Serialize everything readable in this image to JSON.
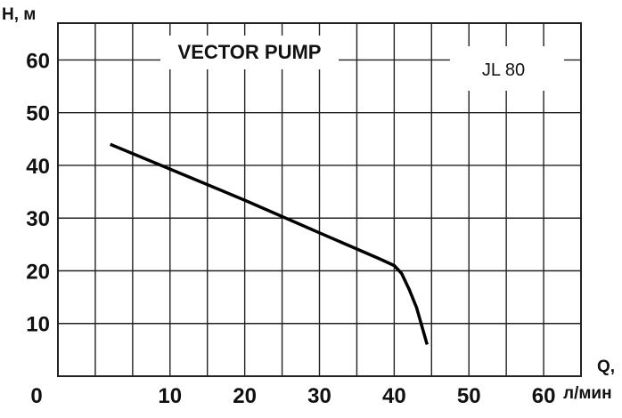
{
  "chart_data": {
    "type": "line",
    "title": "VECTOR PUMP",
    "model_label": "JL 80",
    "ylabel": "H, м",
    "xlabel_line1": "Q,",
    "xlabel_line2": "л/мин",
    "xlim": [
      -5,
      65
    ],
    "ylim": [
      0,
      67
    ],
    "x_ticks": [
      "0",
      "10",
      "20",
      "30",
      "40",
      "50",
      "60"
    ],
    "y_ticks": [
      "10",
      "20",
      "30",
      "40",
      "50",
      "60"
    ],
    "grid": true,
    "series": [
      {
        "color": "#000000",
        "points": [
          [
            2,
            44
          ],
          [
            10,
            39.3
          ],
          [
            20,
            33.4
          ],
          [
            30,
            27.2
          ],
          [
            38,
            22.3
          ],
          [
            40,
            21
          ],
          [
            41,
            19.5
          ],
          [
            42,
            16.5
          ],
          [
            43,
            13
          ],
          [
            44.4,
            6
          ]
        ]
      }
    ]
  }
}
